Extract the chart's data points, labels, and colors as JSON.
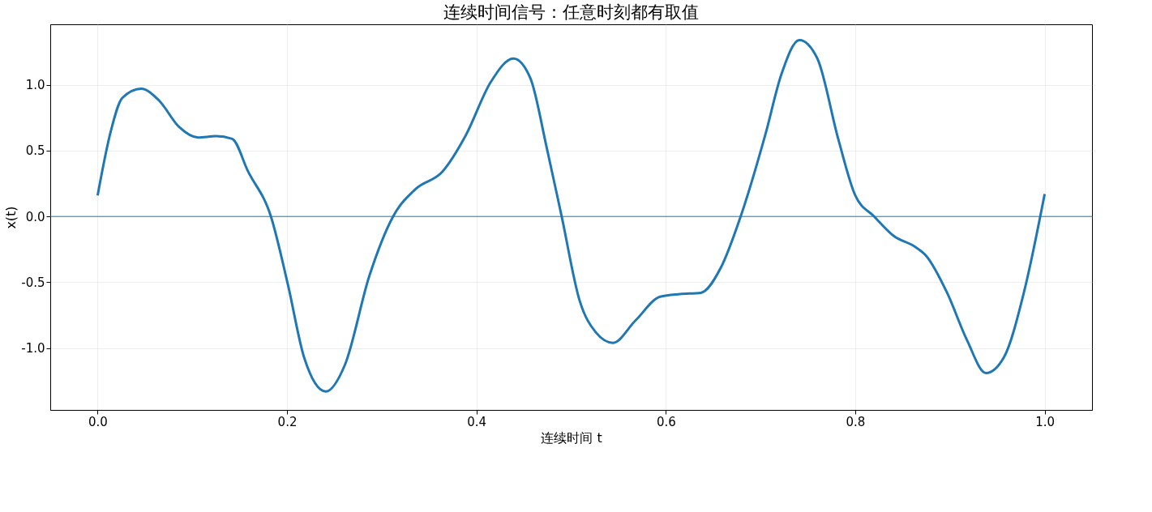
{
  "chart_data": {
    "type": "line",
    "title": "连续时间信号：任意时刻都有取值",
    "xlabel": "连续时间 t",
    "ylabel": "x(t)",
    "x": [
      0,
      0.014,
      0.026,
      0.046,
      0.065,
      0.086,
      0.106,
      0.125,
      0.142,
      0.159,
      0.183,
      0.201,
      0.218,
      0.241,
      0.261,
      0.287,
      0.312,
      0.336,
      0.364,
      0.389,
      0.415,
      0.439,
      0.457,
      0.474,
      0.49,
      0.509,
      0.526,
      0.544,
      0.568,
      0.594,
      0.615,
      0.637,
      0.658,
      0.679,
      0.705,
      0.722,
      0.741,
      0.76,
      0.782,
      0.8,
      0.82,
      0.841,
      0.863,
      0.875,
      0.897,
      0.918,
      0.938,
      0.957,
      0.978,
      1.0
    ],
    "series": [
      {
        "color": "#1f77b4",
        "values": [
          0.16,
          0.65,
          0.9,
          0.97,
          0.88,
          0.68,
          0.6,
          0.61,
          0.59,
          0.34,
          0,
          -0.52,
          -1.07,
          -1.33,
          -1.13,
          -0.45,
          0,
          0.21,
          0.34,
          0.62,
          1.02,
          1.2,
          1.05,
          0.53,
          0,
          -0.64,
          -0.88,
          -0.96,
          -0.79,
          -0.61,
          -0.59,
          -0.58,
          -0.39,
          0,
          0.62,
          1.08,
          1.34,
          1.2,
          0.59,
          0.16,
          0,
          -0.15,
          -0.23,
          -0.3,
          -0.58,
          -0.94,
          -1.19,
          -1.07,
          -0.58,
          0.17
        ]
      }
    ],
    "xlim": [
      -0.05,
      1.05
    ],
    "xticks": [
      {
        "value": 0,
        "label": "0.0"
      },
      0.2,
      0.4,
      0.6,
      0.8,
      {
        "value": 1,
        "label": "1.0"
      }
    ],
    "ylim": [
      -1.47,
      1.46
    ],
    "yticks": [
      {
        "value": -1,
        "label": "-1.0"
      },
      -0.5,
      {
        "value": 0,
        "label": "0.0"
      },
      0.5,
      {
        "value": 1,
        "label": "1.0"
      }
    ],
    "ref_lines": [
      {
        "axis": "y",
        "value": 0,
        "color": "#1f77b4"
      }
    ],
    "grid": true,
    "line_style": "solid",
    "marker": "none"
  }
}
